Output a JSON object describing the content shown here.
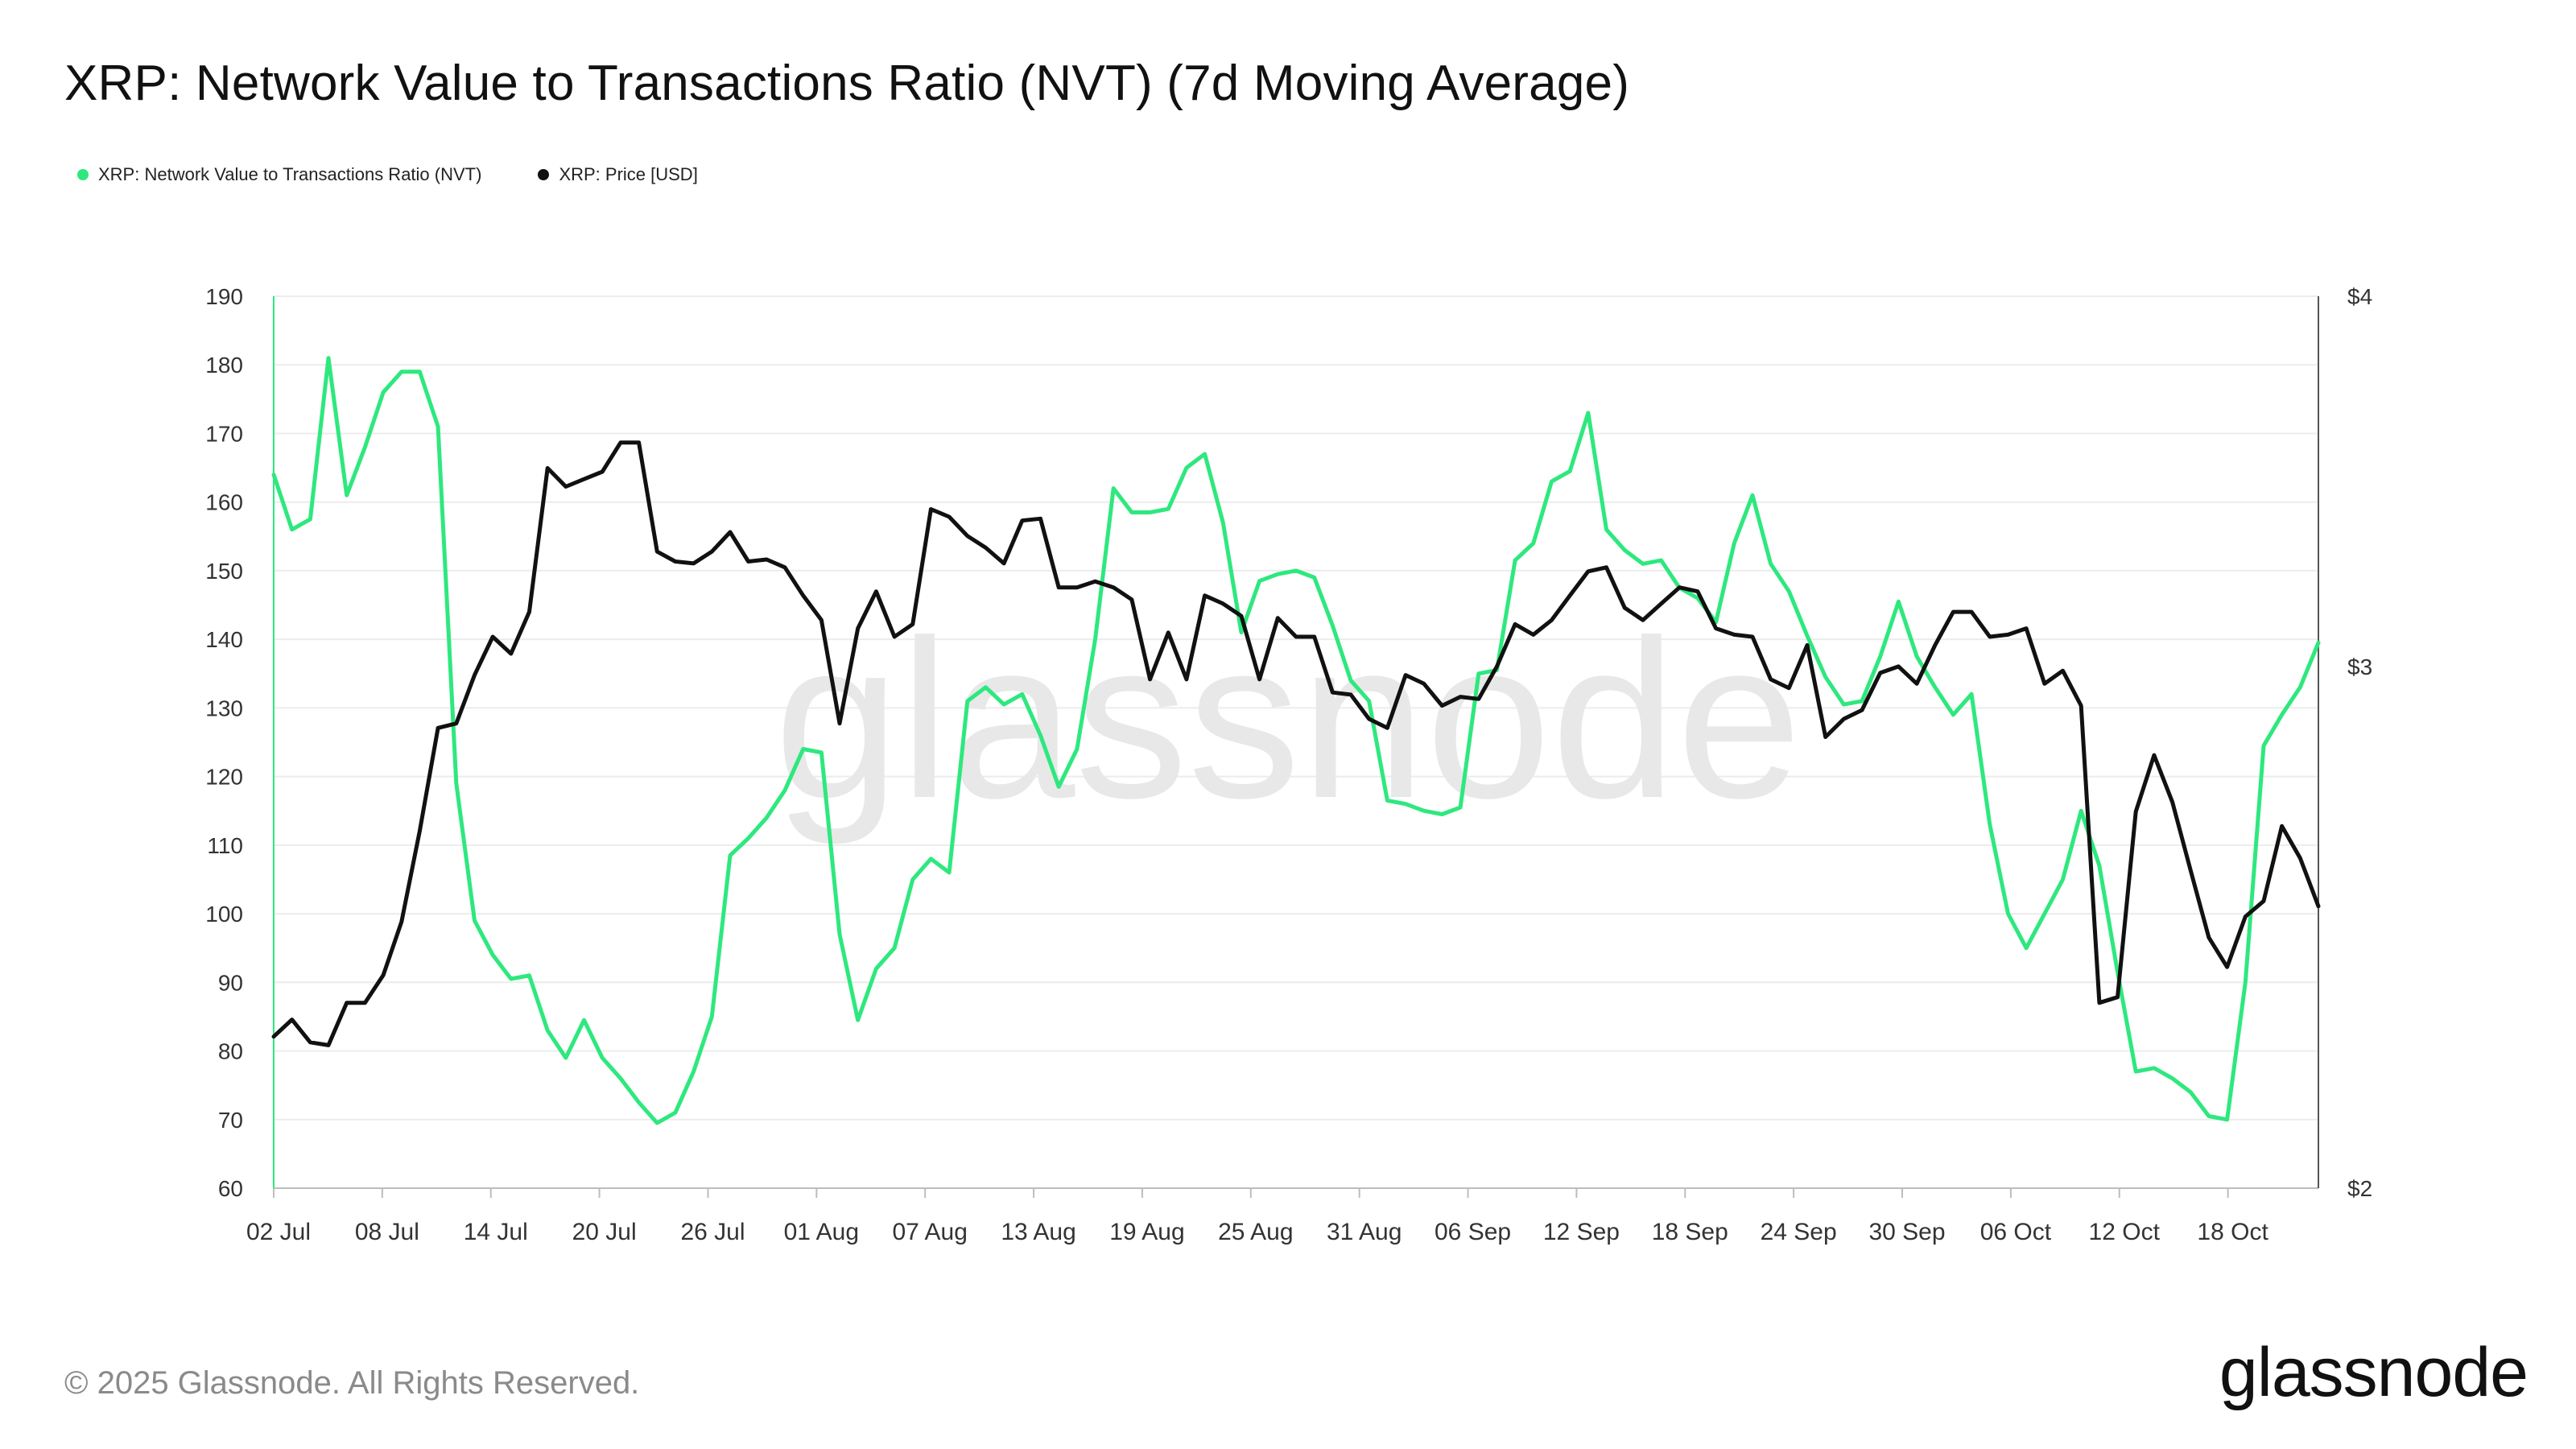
{
  "title": "XRP: Network Value to Transactions Ratio (NVT) (7d Moving Average)",
  "legend": [
    {
      "label": "XRP: Network Value to Transactions Ratio (NVT)",
      "color": "#2ee87e"
    },
    {
      "label": "XRP: Price [USD]",
      "color": "#111111"
    }
  ],
  "watermark": "glassnode",
  "footer": "© 2025 Glassnode. All Rights Reserved.",
  "brand": "glassnode",
  "chart_data": {
    "type": "line",
    "x_tick_labels": [
      "02 Jul",
      "08 Jul",
      "14 Jul",
      "20 Jul",
      "26 Jul",
      "01 Aug",
      "07 Aug",
      "13 Aug",
      "19 Aug",
      "25 Aug",
      "31 Aug",
      "06 Sep",
      "12 Sep",
      "18 Sep",
      "24 Sep",
      "30 Sep",
      "06 Oct",
      "12 Oct",
      "18 Oct"
    ],
    "x_start": "2025-07-02",
    "x_end": "2025-10-23",
    "y_left": {
      "min": 60,
      "max": 190,
      "ticks": [
        60,
        70,
        80,
        90,
        100,
        110,
        120,
        130,
        140,
        150,
        160,
        170,
        180,
        190
      ]
    },
    "y_right": {
      "min": 2,
      "max": 4,
      "tick_labels": [
        "$2",
        "$3",
        "$4"
      ],
      "tick_values": [
        2,
        3,
        4
      ],
      "scale": "log"
    },
    "grid": true,
    "legend_position": "top-left",
    "series": [
      {
        "name": "XRP: Network Value to Transactions Ratio (NVT)",
        "axis": "left",
        "color": "#2ee87e",
        "values": [
          164,
          156,
          157.5,
          181,
          161,
          168,
          176,
          179,
          179,
          171,
          119,
          99,
          94,
          90.5,
          91,
          83,
          79,
          84.5,
          79,
          76,
          72.5,
          69.5,
          71,
          77,
          85,
          108.5,
          111,
          114,
          118,
          124,
          123.5,
          97,
          84.5,
          92,
          95,
          105,
          108,
          106,
          131,
          133,
          130.5,
          132,
          126,
          118.5,
          124,
          140,
          162,
          158.5,
          158.5,
          159,
          165,
          167,
          157,
          141,
          148.5,
          149.5,
          150,
          149,
          142,
          134,
          131,
          116.5,
          116,
          115,
          114.5,
          115.5,
          135,
          135.5,
          151.5,
          154,
          163,
          164.5,
          173,
          156,
          153,
          151,
          151.5,
          147.5,
          146,
          142.5,
          154,
          161,
          151,
          147,
          140.5,
          134.5,
          130.5,
          131,
          137.5,
          145.5,
          137.5,
          133,
          129,
          132,
          113,
          100,
          95,
          100,
          105,
          115,
          107,
          91.5,
          77,
          77.5,
          76,
          74,
          70.5,
          70,
          90,
          124.5,
          129,
          133,
          139.5
        ]
      },
      {
        "name": "XRP: Price [USD]",
        "axis": "right",
        "values": [
          2.25,
          2.28,
          2.24,
          2.235,
          2.31,
          2.31,
          2.36,
          2.46,
          2.64,
          2.86,
          2.87,
          2.98,
          3.07,
          3.03,
          3.13,
          3.5,
          3.45,
          3.47,
          3.49,
          3.57,
          3.57,
          3.28,
          3.255,
          3.25,
          3.28,
          3.33,
          3.255,
          3.26,
          3.24,
          3.17,
          3.11,
          2.87,
          3.09,
          3.18,
          3.07,
          3.1,
          3.39,
          3.37,
          3.32,
          3.29,
          3.25,
          3.36,
          3.365,
          3.19,
          3.19,
          3.205,
          3.19,
          3.16,
          2.97,
          3.08,
          2.97,
          3.17,
          3.15,
          3.12,
          2.97,
          3.115,
          3.07,
          3.07,
          2.94,
          2.935,
          2.88,
          2.86,
          2.98,
          2.96,
          2.91,
          2.93,
          2.925,
          3.0,
          3.1,
          3.075,
          3.11,
          3.17,
          3.23,
          3.24,
          3.14,
          3.11,
          3.15,
          3.19,
          3.18,
          3.09,
          3.075,
          3.07,
          2.97,
          2.95,
          3.05,
          2.84,
          2.88,
          2.9,
          2.985,
          3.0,
          2.96,
          3.05,
          3.13,
          3.13,
          3.07,
          3.075,
          3.09,
          2.96,
          2.99,
          2.91,
          2.31,
          2.32,
          2.68,
          2.8,
          2.7,
          2.56,
          2.43,
          2.375,
          2.47,
          2.5,
          2.65,
          2.585,
          2.49
        ]
      }
    ]
  }
}
